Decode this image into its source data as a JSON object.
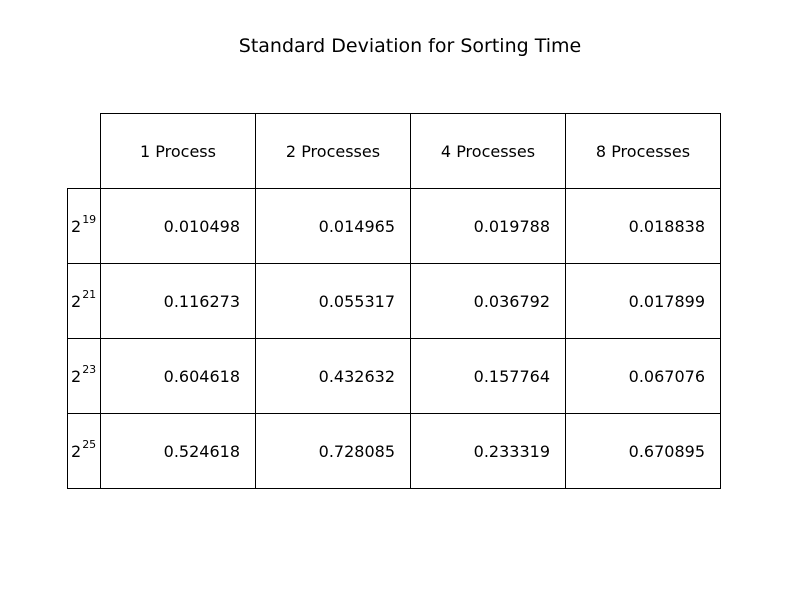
{
  "chart_data": {
    "type": "table",
    "title": "Standard Deviation for Sorting Time",
    "columns": [
      "1 Process",
      "2 Processes",
      "4 Processes",
      "8 Processes"
    ],
    "rows": [
      {
        "base": "2",
        "exp": "19",
        "values": [
          "0.010498",
          "0.014965",
          "0.019788",
          "0.018838"
        ]
      },
      {
        "base": "2",
        "exp": "21",
        "values": [
          "0.116273",
          "0.055317",
          "0.036792",
          "0.017899"
        ]
      },
      {
        "base": "2",
        "exp": "23",
        "values": [
          "0.604618",
          "0.432632",
          "0.157764",
          "0.067076"
        ]
      },
      {
        "base": "2",
        "exp": "25",
        "values": [
          "0.524618",
          "0.728085",
          "0.233319",
          "0.670895"
        ]
      }
    ]
  }
}
